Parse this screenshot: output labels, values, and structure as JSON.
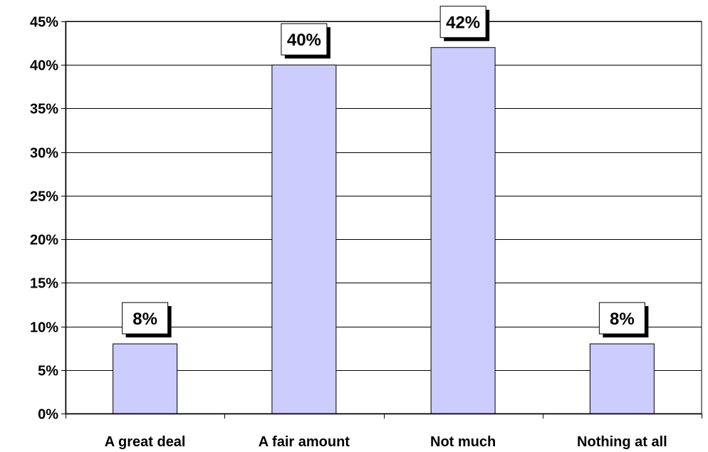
{
  "chart_data": {
    "type": "bar",
    "categories": [
      "A great deal",
      "A fair amount",
      "Not much",
      "Nothing at all"
    ],
    "values": [
      8,
      40,
      42,
      8
    ],
    "data_labels": [
      "8%",
      "40%",
      "42%",
      "8%"
    ],
    "title": "",
    "xlabel": "",
    "ylabel": "",
    "ylim": [
      0,
      45
    ],
    "yticks": [
      0,
      5,
      10,
      15,
      20,
      25,
      30,
      35,
      40,
      45
    ],
    "ytick_labels": [
      "0%",
      "5%",
      "10%",
      "15%",
      "20%",
      "25%",
      "30%",
      "35%",
      "40%",
      "45%"
    ],
    "grid": true,
    "legend": false,
    "colors": {
      "bar_fill": "#ccccff",
      "bar_stroke": "#000000",
      "grid": "#000000",
      "background": "#ffffff"
    }
  }
}
